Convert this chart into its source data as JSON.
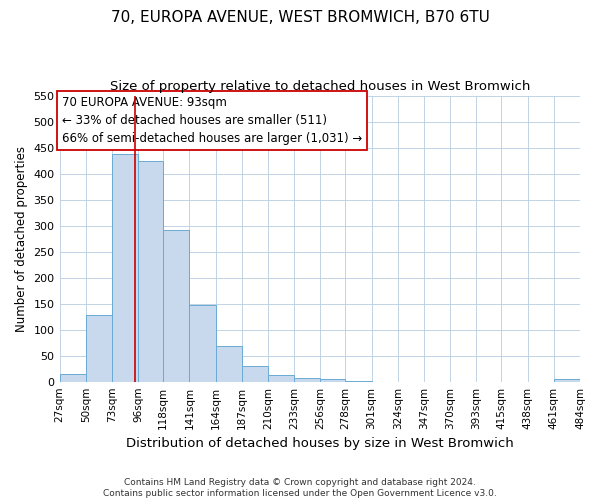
{
  "title": "70, EUROPA AVENUE, WEST BROMWICH, B70 6TU",
  "subtitle": "Size of property relative to detached houses in West Bromwich",
  "xlabel": "Distribution of detached houses by size in West Bromwich",
  "ylabel": "Number of detached properties",
  "bin_edges": [
    27,
    50,
    73,
    96,
    118,
    141,
    164,
    187,
    210,
    233,
    256,
    278,
    301,
    324,
    347,
    370,
    393,
    415,
    438,
    461,
    484
  ],
  "bin_labels": [
    "27sqm",
    "50sqm",
    "73sqm",
    "96sqm",
    "118sqm",
    "141sqm",
    "164sqm",
    "187sqm",
    "210sqm",
    "233sqm",
    "256sqm",
    "278sqm",
    "301sqm",
    "324sqm",
    "347sqm",
    "370sqm",
    "393sqm",
    "415sqm",
    "438sqm",
    "461sqm",
    "484sqm"
  ],
  "counts": [
    15,
    128,
    438,
    425,
    292,
    147,
    68,
    30,
    13,
    8,
    5,
    1,
    0,
    0,
    0,
    0,
    0,
    0,
    0,
    5
  ],
  "bar_color": "#c8d9ed",
  "bar_edge_color": "#6aaad4",
  "vline_x": 93,
  "vline_color": "#cc0000",
  "annotation_line1": "70 EUROPA AVENUE: 93sqm",
  "annotation_line2": "← 33% of detached houses are smaller (511)",
  "annotation_line3": "66% of semi-detached houses are larger (1,031) →",
  "annotation_box_color": "#ffffff",
  "annotation_box_edge": "#cc0000",
  "ylim": [
    0,
    550
  ],
  "yticks": [
    0,
    50,
    100,
    150,
    200,
    250,
    300,
    350,
    400,
    450,
    500,
    550
  ],
  "footer_line1": "Contains HM Land Registry data © Crown copyright and database right 2024.",
  "footer_line2": "Contains public sector information licensed under the Open Government Licence v3.0.",
  "title_fontsize": 11,
  "subtitle_fontsize": 9.5,
  "xlabel_fontsize": 9.5,
  "ylabel_fontsize": 8.5,
  "annotation_fontsize": 8.5,
  "footer_fontsize": 6.5,
  "tick_fontsize": 7.5,
  "ytick_fontsize": 8
}
